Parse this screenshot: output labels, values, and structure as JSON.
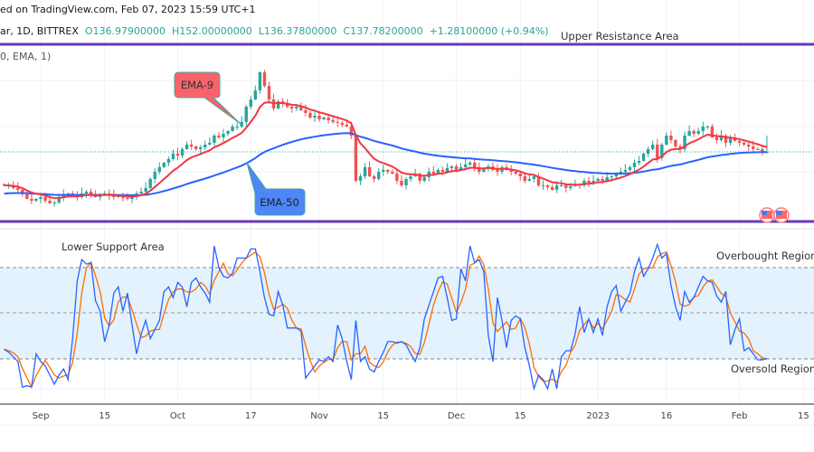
{
  "header": {
    "published": "ed on TradingView.com, Feb 07, 2023 15:59 UTC+1",
    "symbol": "ar, 1D, BITTREX",
    "open": "O136.97900000",
    "high": "H152.00000000",
    "low": "L136.37800000",
    "close": "C137.78200000",
    "change": "+1.28100000 (+0.94%)",
    "indicator": "0, EMA, 1)"
  },
  "annotations": {
    "upper_resistance": "Upper Resistance Area",
    "lower_support": "Lower Support Area",
    "overbought": "Overbought Region",
    "oversold": "Oversold Region",
    "ema9_callout": "EMA-9",
    "ema50_callout": "EMA-50"
  },
  "colors": {
    "up": "#26a69a",
    "down": "#ef5350",
    "ema9": "#f23645",
    "ema50": "#2962ff",
    "stoch_k": "#2962ff",
    "stoch_d": "#ff6d00",
    "levels": "#673ab7",
    "ema9_callout": "#f7626c",
    "ema50_callout": "#4f86f7",
    "band": "#e3f2fd"
  },
  "chart_data": [
    {
      "type": "candlestick",
      "interval": "1D",
      "x_start": "2022-08-24",
      "close": [
        108.5,
        108.5,
        106.2,
        104.6,
        100.7,
        96.7,
        95.1,
        96.7,
        98.3,
        95.1,
        92.8,
        93.5,
        98.3,
        100.7,
        101.4,
        99.9,
        98.3,
        101.4,
        103.0,
        99.9,
        98.3,
        100.7,
        101.4,
        99.9,
        98.3,
        99.1,
        97.5,
        96.7,
        98.3,
        101.4,
        103.0,
        106.2,
        114.1,
        120.4,
        124.4,
        128.3,
        131.5,
        136.2,
        134.6,
        140.2,
        144.1,
        142.5,
        140.2,
        141.7,
        144.1,
        145.7,
        152.0,
        150.4,
        153.6,
        156.0,
        159.9,
        159.9,
        163.9,
        177.3,
        183.6,
        191.5,
        207.3,
        195.4,
        183.6,
        175.7,
        182.0,
        179.7,
        177.3,
        175.7,
        177.3,
        174.1,
        171.8,
        167.8,
        169.4,
        166.2,
        167.8,
        165.4,
        163.9,
        163.1,
        161.5,
        159.9,
        152.0,
        112.5,
        116.4,
        124.4,
        116.4,
        114.1,
        120.4,
        122.0,
        120.4,
        118.8,
        112.5,
        108.5,
        114.1,
        116.4,
        118.8,
        112.5,
        115.7,
        120.4,
        118.8,
        122.0,
        120.4,
        123.6,
        125.1,
        122.0,
        124.4,
        126.7,
        128.3,
        124.4,
        120.4,
        123.6,
        125.1,
        122.0,
        120.4,
        124.4,
        122.0,
        120.4,
        118.8,
        116.4,
        112.5,
        114.1,
        116.4,
        108.5,
        108.5,
        107.0,
        104.6,
        108.5,
        108.5,
        106.2,
        107.8,
        109.3,
        108.5,
        112.5,
        110.9,
        112.5,
        114.1,
        112.5,
        115.7,
        116.4,
        118.0,
        120.4,
        122.0,
        124.4,
        128.3,
        129.9,
        136.2,
        140.2,
        144.1,
        132.3,
        144.1,
        152.0,
        148.1,
        142.5,
        140.2,
        152.0,
        156.0,
        153.6,
        156.0,
        159.9,
        159.9,
        150.4,
        148.1,
        152.0,
        145.7,
        149.6,
        147.3,
        145.7,
        144.1,
        142.5,
        140.2,
        140.2,
        137.8,
        137.78
      ],
      "last_bar": {
        "open": 136.979,
        "high": 152.0,
        "low": 136.378,
        "close": 137.782
      },
      "overlays": [
        "EMA-9",
        "EMA-50"
      ],
      "horizontal_levels": [
        {
          "label": "Upper Resistance Area",
          "value": 231.8
        },
        {
          "label": "Lower Support Area",
          "value": 77.0
        }
      ],
      "current_price": 137.782,
      "x_ticks": [
        "Sep",
        "15",
        "Oct",
        "17",
        "Nov",
        "15",
        "Dec",
        "15",
        "2023",
        "16",
        "Feb",
        "15"
      ],
      "x_tick_dates": [
        "2022-09-01",
        "2022-09-15",
        "2022-10-01",
        "2022-10-17",
        "2022-11-01",
        "2022-11-15",
        "2022-12-01",
        "2022-12-15",
        "2023-01-01",
        "2023-01-16",
        "2023-02-01",
        "2023-02-15"
      ]
    },
    {
      "type": "line",
      "x_start": "2022-08-24",
      "ylim": [
        0,
        100
      ],
      "bands": {
        "upper": 80,
        "middle": 50,
        "lower": 20
      },
      "k": [
        26,
        24,
        21,
        18,
        1,
        2,
        1,
        23,
        18,
        15,
        9,
        3,
        9,
        13,
        6,
        33,
        71,
        85,
        82,
        83,
        58,
        51,
        31,
        42,
        63,
        67,
        51,
        63,
        42,
        23,
        36,
        45,
        33,
        39,
        45,
        64,
        67,
        60,
        70,
        67,
        54,
        70,
        73,
        67,
        63,
        57,
        94,
        80,
        74,
        73,
        76,
        86,
        86,
        86,
        92,
        92,
        77,
        60,
        49,
        48,
        64,
        55,
        40,
        40,
        40,
        38,
        7,
        11,
        15,
        19,
        18,
        21,
        18,
        42,
        33,
        18,
        6,
        45,
        18,
        21,
        13,
        11,
        18,
        24,
        31,
        31,
        30,
        31,
        29,
        23,
        18,
        27,
        46,
        55,
        64,
        73,
        74,
        60,
        45,
        46,
        79,
        71,
        94,
        83,
        85,
        77,
        35,
        18,
        60,
        45,
        27,
        45,
        48,
        46,
        27,
        15,
        0,
        9,
        6,
        0,
        13,
        0,
        21,
        25,
        25,
        36,
        54,
        37,
        46,
        37,
        46,
        35,
        54,
        64,
        68,
        51,
        57,
        63,
        77,
        86,
        74,
        79,
        86,
        95,
        86,
        89,
        68,
        54,
        45,
        64,
        57,
        60,
        67,
        74,
        71,
        70,
        61,
        57,
        64,
        29,
        39,
        46,
        25,
        27,
        23,
        19,
        19,
        20
      ]
    }
  ]
}
